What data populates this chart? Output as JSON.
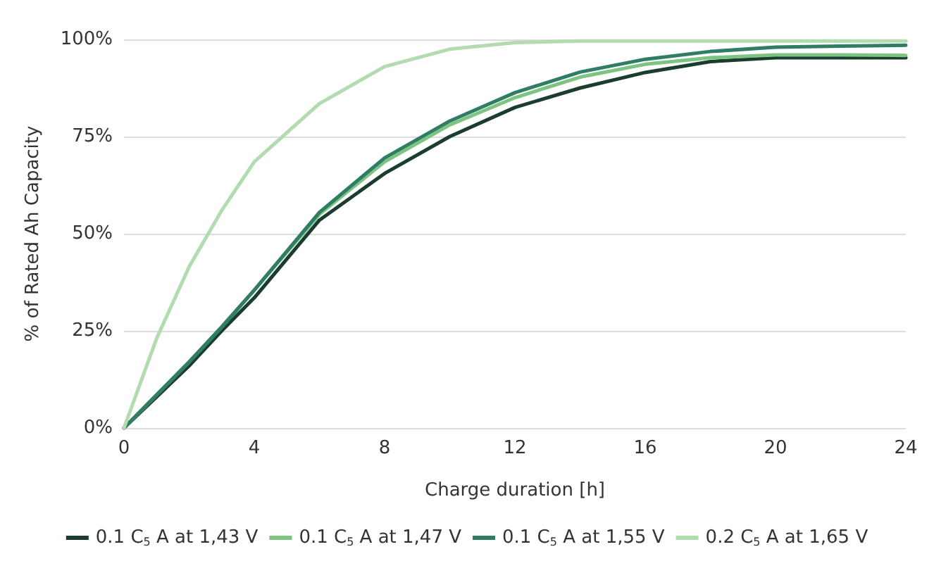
{
  "chart_data": {
    "type": "line",
    "xlabel": "Charge duration [h]",
    "ylabel": "% of Rated Ah Capacity",
    "x": [
      0,
      1,
      2,
      3,
      4,
      6,
      8,
      10,
      12,
      14,
      16,
      18,
      20,
      22,
      24
    ],
    "series": [
      {
        "name": "0.1 C$_{5}$ A at 1,43 V",
        "color": "#1b3d2f",
        "values": [
          0,
          8,
          16,
          25,
          33.5,
          53.5,
          65.5,
          75,
          82.5,
          87.5,
          91.5,
          94.3,
          95.3,
          95.3,
          95.3
        ]
      },
      {
        "name": "0.1 C$_{5}$ A at 1,47 V",
        "color": "#7cc47f",
        "values": [
          0,
          8.5,
          17,
          26,
          35.5,
          55,
          68.5,
          78,
          85,
          90.3,
          93.6,
          95.3,
          96,
          96,
          95.9
        ]
      },
      {
        "name": "0.1 C$_{5}$ A at 1,55 V",
        "color": "#2e7d64",
        "values": [
          0,
          8.5,
          17,
          26,
          35.5,
          55.5,
          69.5,
          79,
          86.3,
          91.6,
          94.9,
          96.9,
          98,
          98.3,
          98.5
        ]
      },
      {
        "name": "0.2 C$_{5}$ A at 1,65 V",
        "color": "#b2dbb0",
        "values": [
          0,
          23,
          41.5,
          56,
          68.5,
          83.5,
          93,
          97.5,
          99.2,
          99.6,
          99.6,
          99.6,
          99.6,
          99.6,
          99.6
        ]
      }
    ],
    "xlim": [
      0,
      24
    ],
    "xticks": [
      0,
      4,
      8,
      12,
      16,
      20,
      24
    ],
    "ylim": [
      0,
      100
    ],
    "yticks": [
      {
        "value": 0,
        "label": "0%"
      },
      {
        "value": 25,
        "label": "25%"
      },
      {
        "value": 50,
        "label": "50%"
      },
      {
        "value": 75,
        "label": "75%"
      },
      {
        "value": 100,
        "label": "100%"
      }
    ],
    "grid": "y",
    "legend": "bottom",
    "marker": "none",
    "line_style": "solid"
  }
}
